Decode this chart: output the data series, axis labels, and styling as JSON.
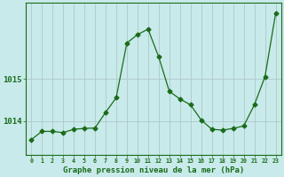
{
  "x": [
    0,
    1,
    2,
    3,
    4,
    5,
    6,
    7,
    8,
    9,
    10,
    11,
    12,
    13,
    14,
    15,
    16,
    17,
    18,
    19,
    20,
    21,
    22,
    23
  ],
  "y": [
    1013.55,
    1013.75,
    1013.75,
    1013.72,
    1013.8,
    1013.82,
    1013.83,
    1014.2,
    1014.55,
    1015.85,
    1016.05,
    1016.18,
    1015.52,
    1014.7,
    1014.52,
    1014.38,
    1014.02,
    1013.8,
    1013.78,
    1013.82,
    1013.88,
    1014.38,
    1015.05,
    1016.55
  ],
  "line_color": "#1a6b1a",
  "marker": "D",
  "marker_size": 2.5,
  "bg_color": "#c8eaea",
  "grid_color": "#b0c8c8",
  "xlabel": "Graphe pression niveau de la mer (hPa)",
  "xlabel_fontsize": 7,
  "ytick_labels": [
    "1014",
    "1015"
  ],
  "ytick_values": [
    1014,
    1015
  ],
  "ylim": [
    1013.2,
    1016.8
  ],
  "xlim": [
    -0.5,
    23.5
  ],
  "tick_color": "#1a6b1a",
  "axis_color": "#1a6b1a",
  "font_color": "#1a6b1a"
}
